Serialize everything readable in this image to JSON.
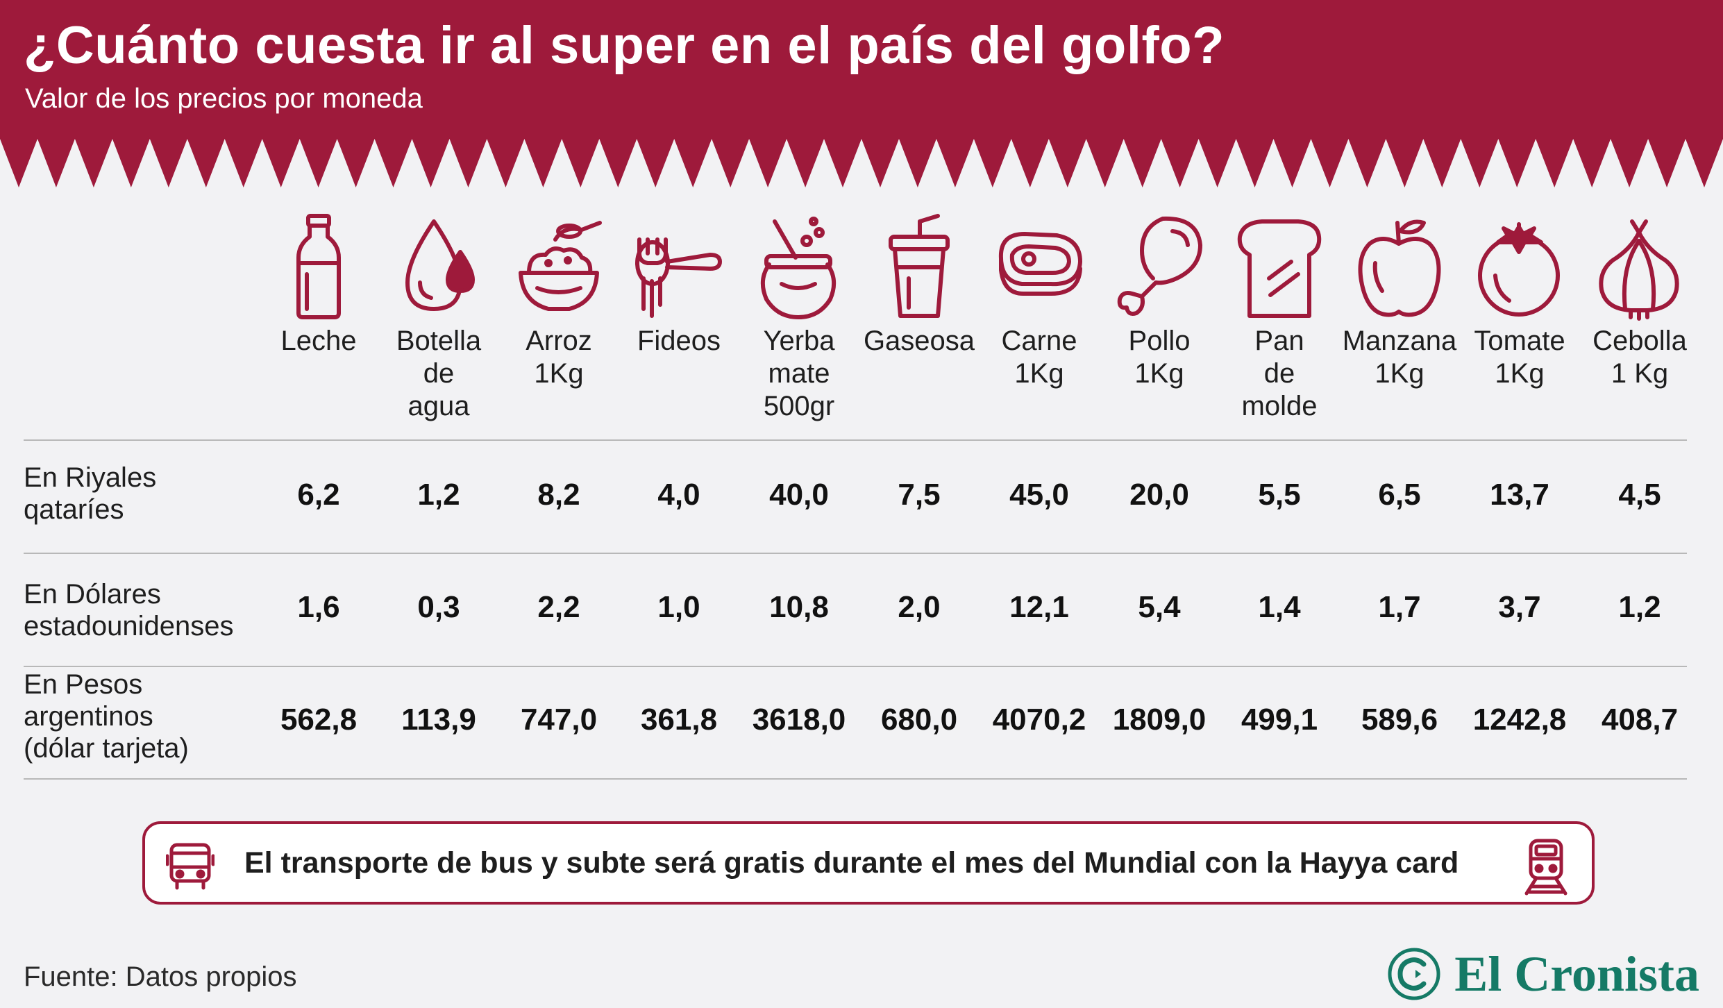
{
  "header": {
    "title": "¿Cuánto cuesta ir al super en el país del golfo?",
    "subtitle": "Valor de los precios por moneda",
    "color": "#9e1a3b"
  },
  "columns": [
    {
      "label": "Leche",
      "icon": "milk-bottle-icon"
    },
    {
      "label": "Botella de agua",
      "icon": "water-drops-icon"
    },
    {
      "label": "Arroz 1Kg",
      "icon": "rice-bowl-icon"
    },
    {
      "label": "Fideos",
      "icon": "noodles-fork-icon"
    },
    {
      "label": "Yerba mate 500gr",
      "icon": "mate-gourd-icon"
    },
    {
      "label": "Gaseosa",
      "icon": "soda-cup-icon"
    },
    {
      "label": "Carne 1Kg",
      "icon": "steak-icon"
    },
    {
      "label": "Pollo 1Kg",
      "icon": "chicken-leg-icon"
    },
    {
      "label": "Pan de molde",
      "icon": "bread-slice-icon"
    },
    {
      "label": "Manzana 1Kg",
      "icon": "apple-icon"
    },
    {
      "label": "Tomate 1Kg",
      "icon": "tomato-icon"
    },
    {
      "label": "Cebolla 1 Kg",
      "icon": "onion-icon"
    }
  ],
  "col_label_lines": [
    [
      "Leche"
    ],
    [
      "Botella",
      "de",
      "agua"
    ],
    [
      "Arroz",
      "1Kg"
    ],
    [
      "Fideos"
    ],
    [
      "Yerba",
      "mate",
      "500gr"
    ],
    [
      "Gaseosa"
    ],
    [
      "Carne",
      "1Kg"
    ],
    [
      "Pollo",
      "1Kg"
    ],
    [
      "Pan",
      "de",
      "molde"
    ],
    [
      "Manzana",
      "1Kg"
    ],
    [
      "Tomate",
      "1Kg"
    ],
    [
      "Cebolla",
      "1 Kg"
    ]
  ],
  "rows": [
    {
      "label_lines": [
        "En Riyales",
        "qataríes"
      ],
      "values": [
        "6,2",
        "1,2",
        "8,2",
        "4,0",
        "40,0",
        "7,5",
        "45,0",
        "20,0",
        "5,5",
        "6,5",
        "13,7",
        "4,5"
      ]
    },
    {
      "label_lines": [
        "En Dólares",
        "estadounidenses"
      ],
      "values": [
        "1,6",
        "0,3",
        "2,2",
        "1,0",
        "10,8",
        "2,0",
        "12,1",
        "5,4",
        "1,4",
        "1,7",
        "3,7",
        "1,2"
      ]
    },
    {
      "label_lines": [
        "En Pesos",
        "argentinos",
        "(dólar tarjeta)"
      ],
      "values": [
        "562,8",
        "113,9",
        "747,0",
        "361,8",
        "3618,0",
        "680,0",
        "4070,2",
        "1809,0",
        "499,1",
        "589,6",
        "1242,8",
        "408,7"
      ]
    }
  ],
  "banner": {
    "text": "El transporte de bus y subte será gratis durante el mes del Mundial con la Hayya card",
    "left_icon": "bus-icon",
    "right_icon": "train-icon"
  },
  "footer": {
    "source": "Fuente: Datos propios",
    "logo_text": "El Cronista",
    "logo_color": "#157a66"
  }
}
